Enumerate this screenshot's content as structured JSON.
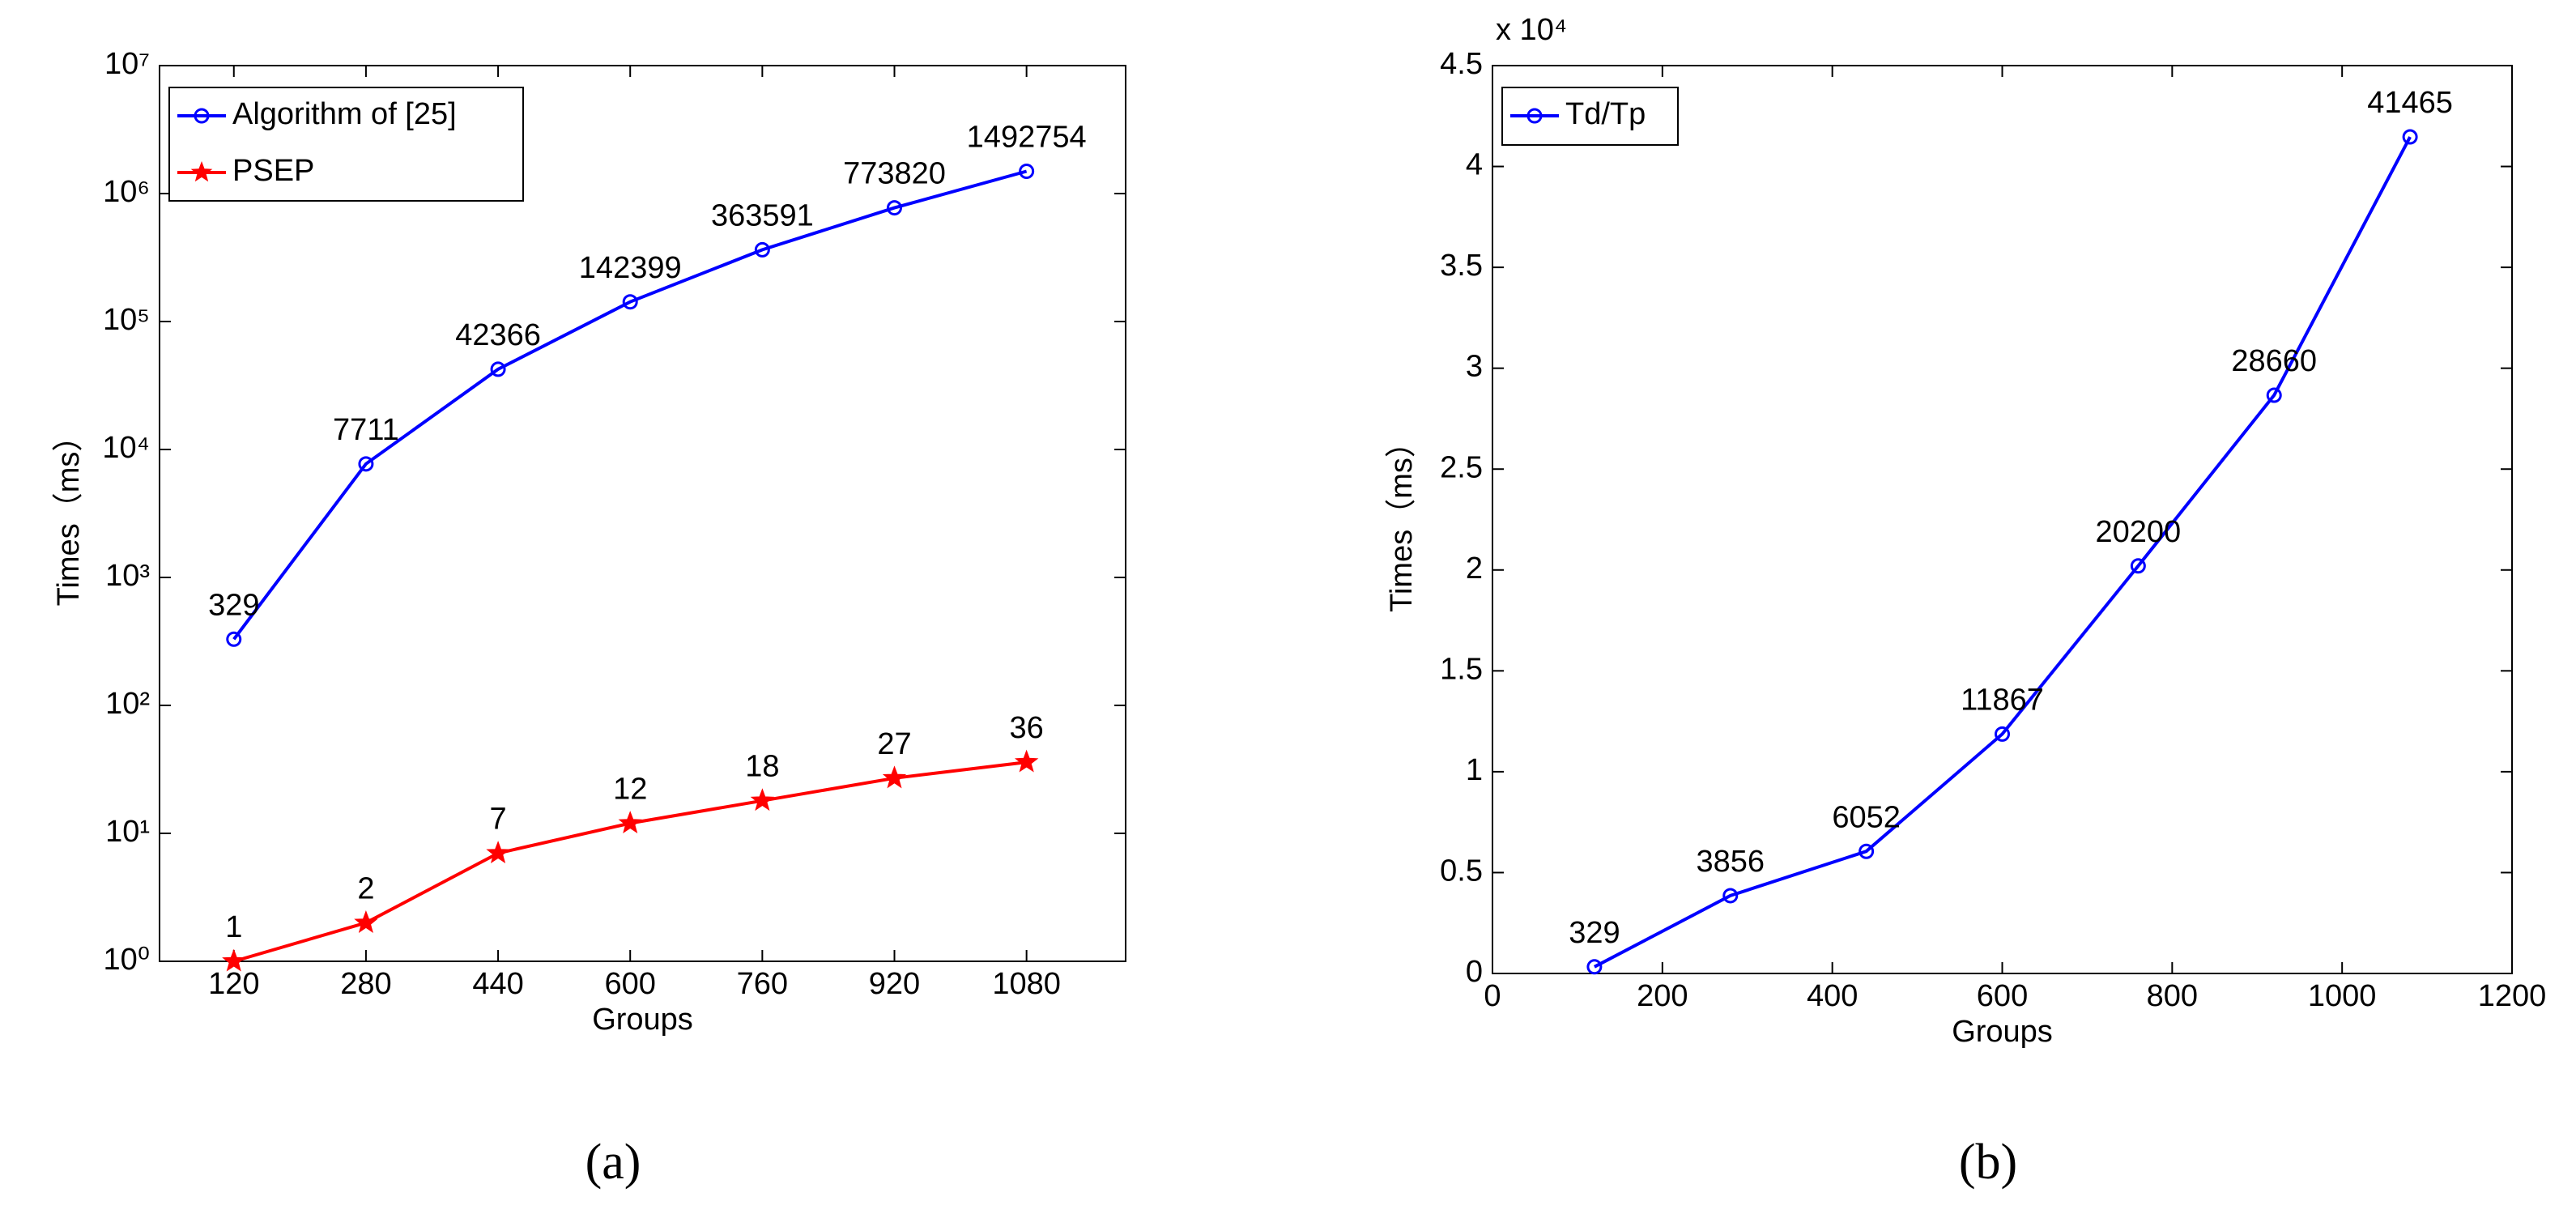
{
  "chart_data": [
    {
      "type": "line",
      "caption": "(a)",
      "xlabel": "Groups",
      "ylabel": "Times（ms）",
      "x": [
        120,
        280,
        440,
        600,
        760,
        920,
        1080
      ],
      "xlim": [
        30,
        1200
      ],
      "xticks": [
        120,
        280,
        440,
        600,
        760,
        920,
        1080
      ],
      "yscale": "log",
      "ylim": [
        1,
        10000000
      ],
      "yticks": [
        {
          "value": 1,
          "label": "10⁰"
        },
        {
          "value": 10,
          "label": "10¹"
        },
        {
          "value": 100,
          "label": "10²"
        },
        {
          "value": 1000,
          "label": "10³"
        },
        {
          "value": 10000,
          "label": "10⁴"
        },
        {
          "value": 100000,
          "label": "10⁵"
        },
        {
          "value": 1000000,
          "label": "10⁶"
        },
        {
          "value": 10000000,
          "label": "10⁷"
        }
      ],
      "legend": "upper left",
      "series": [
        {
          "name": "Algorithm of [25]",
          "color": "#0000ff",
          "marker": "o",
          "values": [
            329,
            7711,
            42366,
            142399,
            363591,
            773820,
            1492754
          ]
        },
        {
          "name": "PSEP",
          "color": "#ff0000",
          "marker": "*",
          "values": [
            1,
            2,
            7,
            12,
            18,
            27,
            36
          ]
        }
      ]
    },
    {
      "type": "line",
      "caption": "(b)",
      "xlabel": "Groups",
      "ylabel": "Times（ms）",
      "y_multiplier": "x 10⁴",
      "x": [
        120,
        280,
        440,
        600,
        760,
        920,
        1080
      ],
      "xlim": [
        0,
        1200
      ],
      "xticks": [
        0,
        200,
        400,
        600,
        800,
        1000,
        1200
      ],
      "yscale": "linear",
      "ylim": [
        0,
        45000
      ],
      "yticks": [
        0,
        {
          "value": 5000,
          "label": "0.5"
        },
        {
          "value": 10000,
          "label": "1"
        },
        {
          "value": 15000,
          "label": "1.5"
        },
        {
          "value": 20000,
          "label": "2"
        },
        {
          "value": 25000,
          "label": "2.5"
        },
        {
          "value": 30000,
          "label": "3"
        },
        {
          "value": 35000,
          "label": "3.5"
        },
        {
          "value": 40000,
          "label": "4"
        },
        {
          "value": 45000,
          "label": "4.5"
        }
      ],
      "legend": "upper left",
      "series": [
        {
          "name": "Td/Tp",
          "color": "#0000ff",
          "marker": "o",
          "values": [
            329,
            3856,
            6052,
            11867,
            20200,
            28660,
            41465
          ]
        }
      ]
    }
  ]
}
